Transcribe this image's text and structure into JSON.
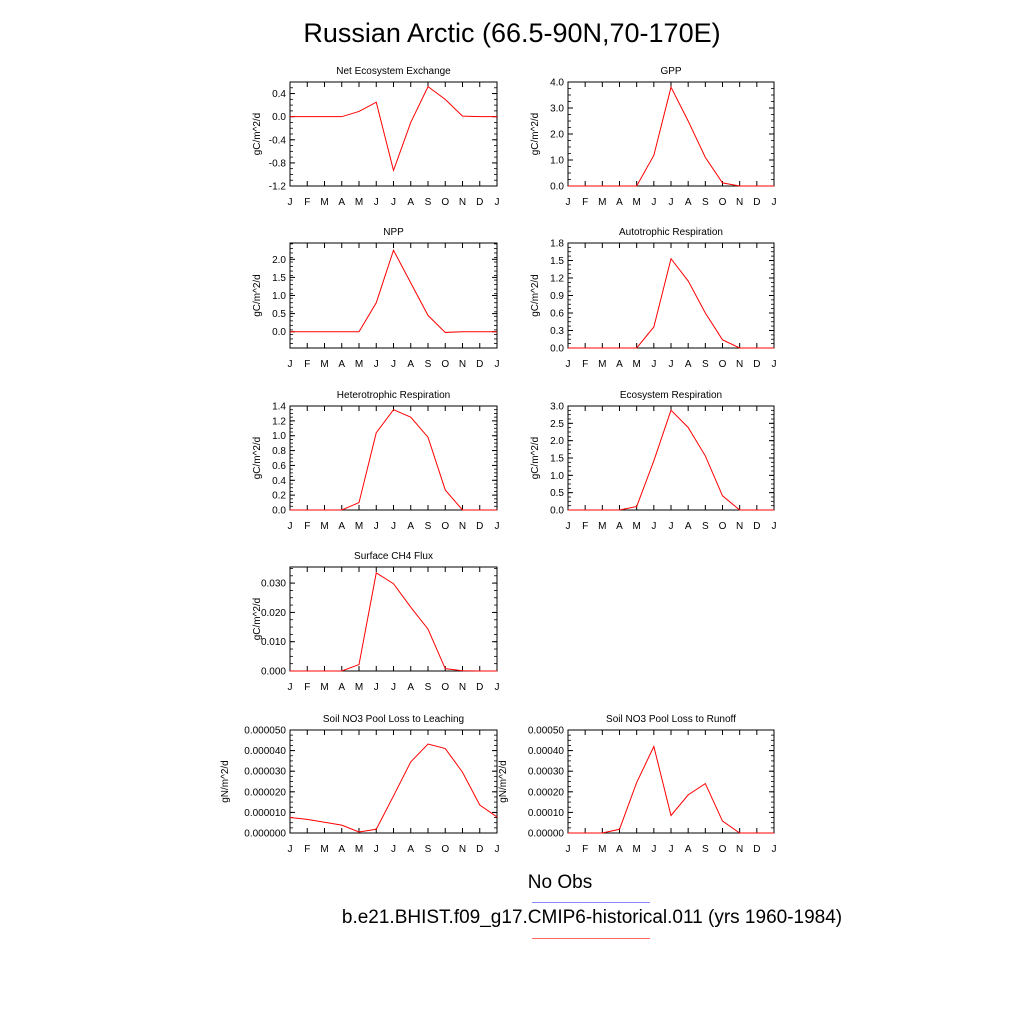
{
  "page": {
    "title": "Russian Arctic (66.5-90N,70-170E)"
  },
  "legend": {
    "entries": [
      {
        "label": "No Obs",
        "color": "#8888ff"
      },
      {
        "label": "b.e21.BHIST.f09_g17.CMIP6-historical.011 (yrs 1960-1984)",
        "color": "#ff6666"
      }
    ]
  },
  "chart_data": [
    {
      "type": "line",
      "title": "Net Ecosystem Exchange",
      "ylabel": "gC/m^2/d",
      "categories": [
        "J",
        "F",
        "M",
        "A",
        "M",
        "J",
        "J",
        "A",
        "S",
        "O",
        "N",
        "D",
        "J"
      ],
      "ylim": [
        -1.2,
        0.6
      ],
      "yticks": [
        "0.4",
        "0.0",
        "-0.4",
        "-0.8",
        "-1.2"
      ],
      "series": [
        {
          "values": [
            0.0,
            0.0,
            0.0,
            0.0,
            0.09,
            0.25,
            -0.93,
            -0.1,
            0.52,
            0.3,
            0.01,
            0.0,
            0.0
          ]
        }
      ]
    },
    {
      "type": "line",
      "title": "GPP",
      "ylabel": "gC/m^2/d",
      "categories": [
        "J",
        "F",
        "M",
        "A",
        "M",
        "J",
        "J",
        "A",
        "S",
        "O",
        "N",
        "D",
        "J"
      ],
      "ylim": [
        0,
        4.0
      ],
      "yticks": [
        "0.0",
        "1.0",
        "2.0",
        "3.0",
        "4.0"
      ],
      "series": [
        {
          "values": [
            0.0,
            0.0,
            0.0,
            0.0,
            0.0,
            1.18,
            3.8,
            2.5,
            1.1,
            0.12,
            0.0,
            0.0,
            0.0
          ]
        }
      ]
    },
    {
      "type": "line",
      "title": "NPP",
      "ylabel": "gC/m^2/d",
      "categories": [
        "J",
        "F",
        "M",
        "A",
        "M",
        "J",
        "J",
        "A",
        "S",
        "O",
        "N",
        "D",
        "J"
      ],
      "ylim": [
        -0.45,
        2.45
      ],
      "yticks": [
        "0.0",
        "0.5",
        "1.0",
        "1.5",
        "2.0"
      ],
      "series": [
        {
          "values": [
            0.0,
            0.0,
            0.0,
            0.0,
            0.0,
            0.8,
            2.25,
            1.35,
            0.45,
            -0.02,
            0.0,
            0.0,
            0.0
          ]
        }
      ]
    },
    {
      "type": "line",
      "title": "Autotrophic Respiration",
      "ylabel": "gC/m^2/d",
      "categories": [
        "J",
        "F",
        "M",
        "A",
        "M",
        "J",
        "J",
        "A",
        "S",
        "O",
        "N",
        "D",
        "J"
      ],
      "ylim": [
        0,
        1.8
      ],
      "yticks": [
        "0.0",
        "0.3",
        "0.6",
        "0.9",
        "1.2",
        "1.5",
        "1.8"
      ],
      "series": [
        {
          "values": [
            0.0,
            0.0,
            0.0,
            0.0,
            0.0,
            0.36,
            1.53,
            1.15,
            0.6,
            0.14,
            0.0,
            0.0,
            0.0
          ]
        }
      ]
    },
    {
      "type": "line",
      "title": "Heterotrophic Respiration",
      "ylabel": "gC/m^2/d",
      "categories": [
        "J",
        "F",
        "M",
        "A",
        "M",
        "J",
        "J",
        "A",
        "S",
        "O",
        "N",
        "D",
        "J"
      ],
      "ylim": [
        0,
        1.4
      ],
      "yticks": [
        "0.0",
        "0.2",
        "0.4",
        "0.6",
        "0.8",
        "1.0",
        "1.2",
        "1.4"
      ],
      "series": [
        {
          "values": [
            0.0,
            0.0,
            0.0,
            0.0,
            0.1,
            1.04,
            1.35,
            1.25,
            0.98,
            0.27,
            0.0,
            0.0,
            0.0
          ]
        }
      ]
    },
    {
      "type": "line",
      "title": "Ecosystem Respiration",
      "ylabel": "gC/m^2/d",
      "categories": [
        "J",
        "F",
        "M",
        "A",
        "M",
        "J",
        "J",
        "A",
        "S",
        "O",
        "N",
        "D",
        "J"
      ],
      "ylim": [
        0,
        3.0
      ],
      "yticks": [
        "0.0",
        "0.5",
        "1.0",
        "1.5",
        "2.0",
        "2.5",
        "3.0"
      ],
      "series": [
        {
          "values": [
            0.0,
            0.0,
            0.0,
            0.0,
            0.1,
            1.42,
            2.88,
            2.38,
            1.56,
            0.41,
            0.0,
            0.0,
            0.0
          ]
        }
      ]
    },
    {
      "type": "line",
      "title": "Surface CH4 Flux",
      "ylabel": "gC/m^2/d",
      "categories": [
        "J",
        "F",
        "M",
        "A",
        "M",
        "J",
        "J",
        "A",
        "S",
        "O",
        "N",
        "D",
        "J"
      ],
      "ylim": [
        0,
        0.0355
      ],
      "yticks": [
        "0.000",
        "0.010",
        "0.020",
        "0.030"
      ],
      "series": [
        {
          "values": [
            0.0,
            0.0,
            0.0,
            0.0,
            0.0022,
            0.0335,
            0.0298,
            0.0218,
            0.0143,
            0.0008,
            0.0001,
            0.0,
            0.0
          ]
        }
      ]
    },
    {
      "type": "line",
      "title": "Soil NO3 Pool Loss to Leaching",
      "ylabel": "gN/m^2/d",
      "categories": [
        "J",
        "F",
        "M",
        "A",
        "M",
        "J",
        "J",
        "A",
        "S",
        "O",
        "N",
        "D",
        "J"
      ],
      "ylim": [
        0,
        5e-05
      ],
      "yticks": [
        "0.000000",
        "0.000010",
        "0.000020",
        "0.000030",
        "0.000040",
        "0.000050"
      ],
      "series": [
        {
          "values": [
            7.5e-06,
            6.6e-06,
            5.2e-06,
            3.8e-06,
            5e-07,
            1.8e-06,
            1.8e-05,
            3.45e-05,
            4.32e-05,
            4.1e-05,
            2.95e-05,
            1.36e-05,
            7.8e-06
          ]
        }
      ]
    },
    {
      "type": "line",
      "title": "Soil NO3 Pool Loss to Runoff",
      "ylabel": "gN/m^2/d",
      "categories": [
        "J",
        "F",
        "M",
        "A",
        "M",
        "J",
        "J",
        "A",
        "S",
        "O",
        "N",
        "D",
        "J"
      ],
      "ylim": [
        0,
        0.0005
      ],
      "yticks": [
        "0.00000",
        "0.00010",
        "0.00020",
        "0.00030",
        "0.00040",
        "0.00050"
      ],
      "series": [
        {
          "values": [
            0.0,
            0.0,
            0.0,
            1.8e-05,
            0.000245,
            0.00042,
            8.5e-05,
            0.000185,
            0.00024,
            5.8e-05,
            0.0,
            0.0,
            0.0
          ]
        }
      ]
    }
  ]
}
